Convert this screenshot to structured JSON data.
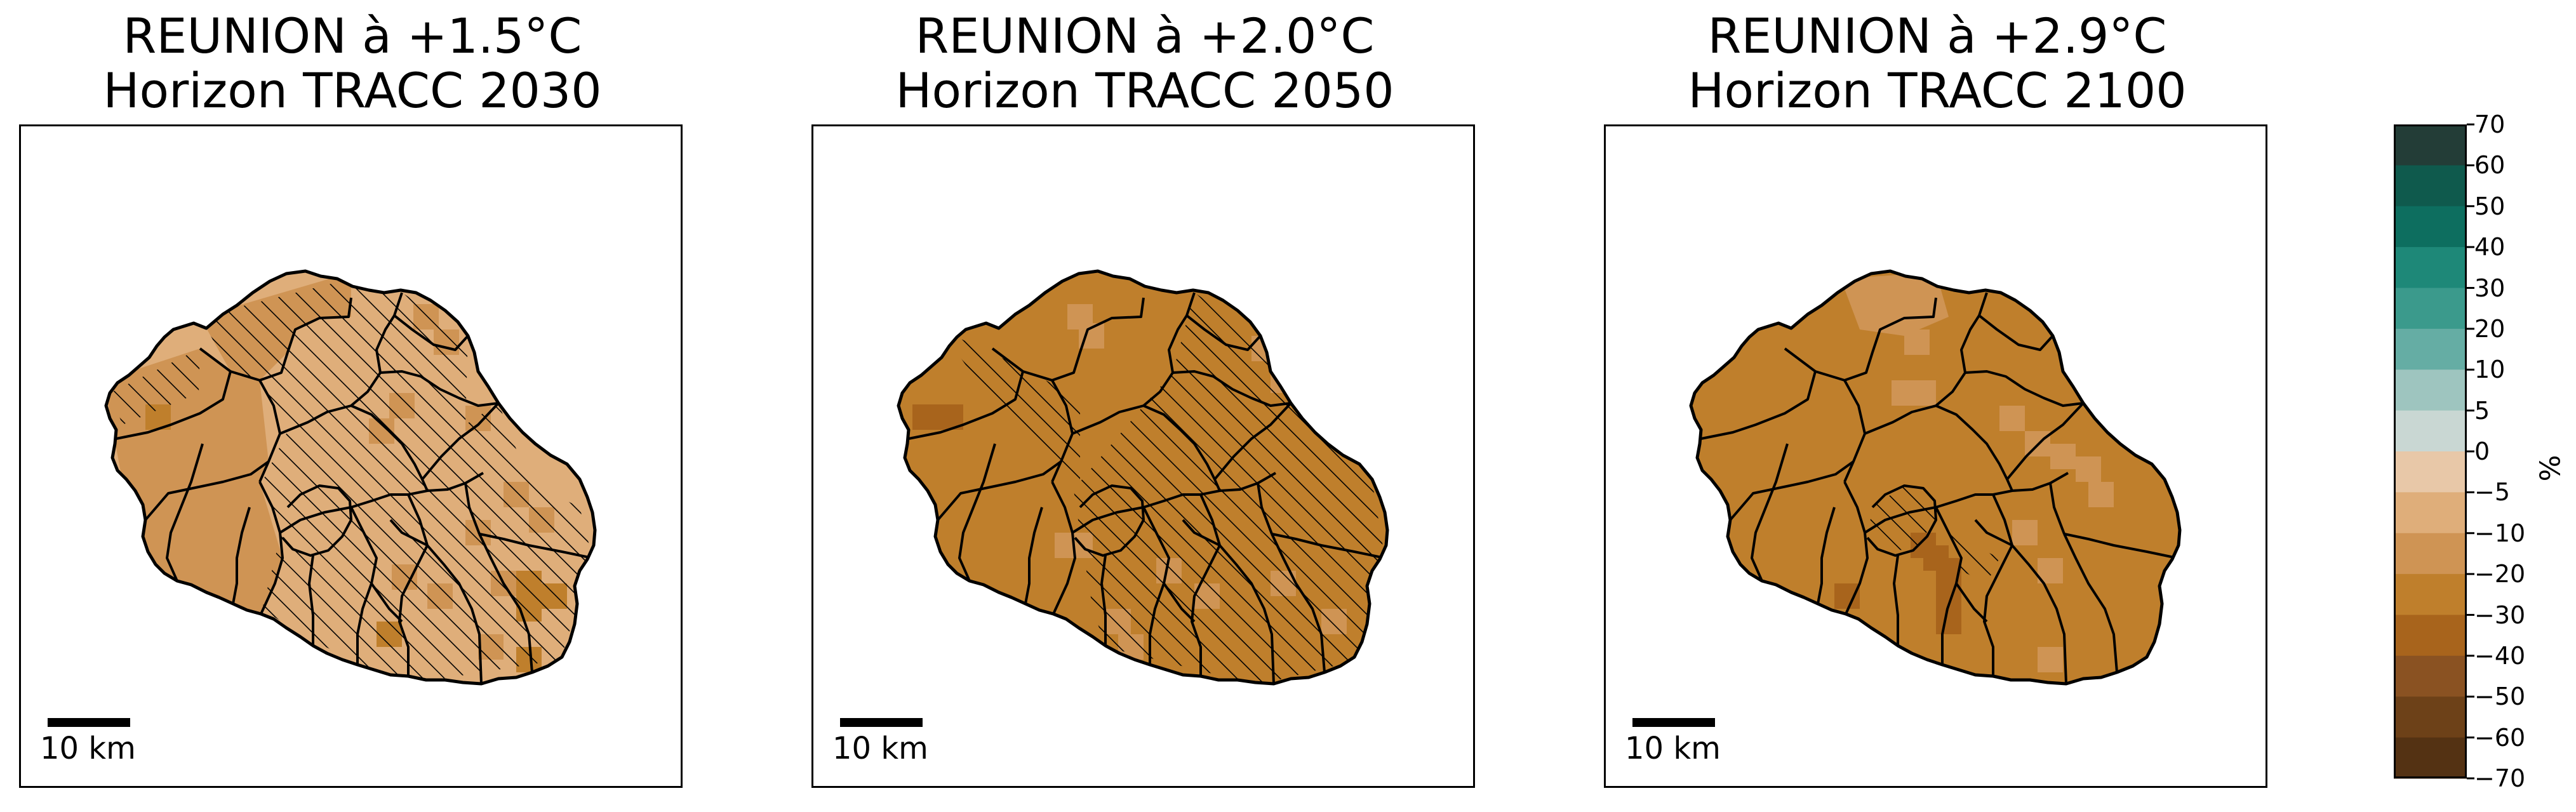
{
  "panels": [
    {
      "title_line1": "REUNION à +1.5°C",
      "title_line2": "Horizon TRACC 2030",
      "scale_bar_label": "10 km",
      "base_color": "#dfae7a",
      "mid_color": "#cf9454",
      "dark_color": "#bf7f2c",
      "hatch_extent": "large"
    },
    {
      "title_line1": "REUNION à +2.0°C",
      "title_line2": "Horizon TRACC 2050",
      "scale_bar_label": "10 km",
      "base_color": "#bf7f2c",
      "mid_color": "#cf9454",
      "dark_color": "#a8641c",
      "hatch_extent": "large"
    },
    {
      "title_line1": "REUNION à +2.9°C",
      "title_line2": "Horizon TRACC 2100",
      "scale_bar_label": "10 km",
      "base_color": "#bf7f2c",
      "mid_color": "#cf9454",
      "dark_color": "#a8641c",
      "hatch_extent": "small"
    }
  ],
  "colorbar": {
    "unit": "%",
    "ticks": [
      "70",
      "60",
      "50",
      "40",
      "30",
      "20",
      "10",
      "5",
      "0",
      "−5",
      "−10",
      "−20",
      "−30",
      "−40",
      "−50",
      "−60",
      "−70"
    ],
    "colors": [
      "#233d37",
      "#0f5a4d",
      "#0d6e5f",
      "#1e8878",
      "#3b9a8c",
      "#65ada4",
      "#9ec5bf",
      "#c9d7d3",
      "#e8c8a8",
      "#dfae7a",
      "#cf9454",
      "#bf7f2c",
      "#a8641c",
      "#8a5222",
      "#6d4118",
      "#543213"
    ]
  }
}
